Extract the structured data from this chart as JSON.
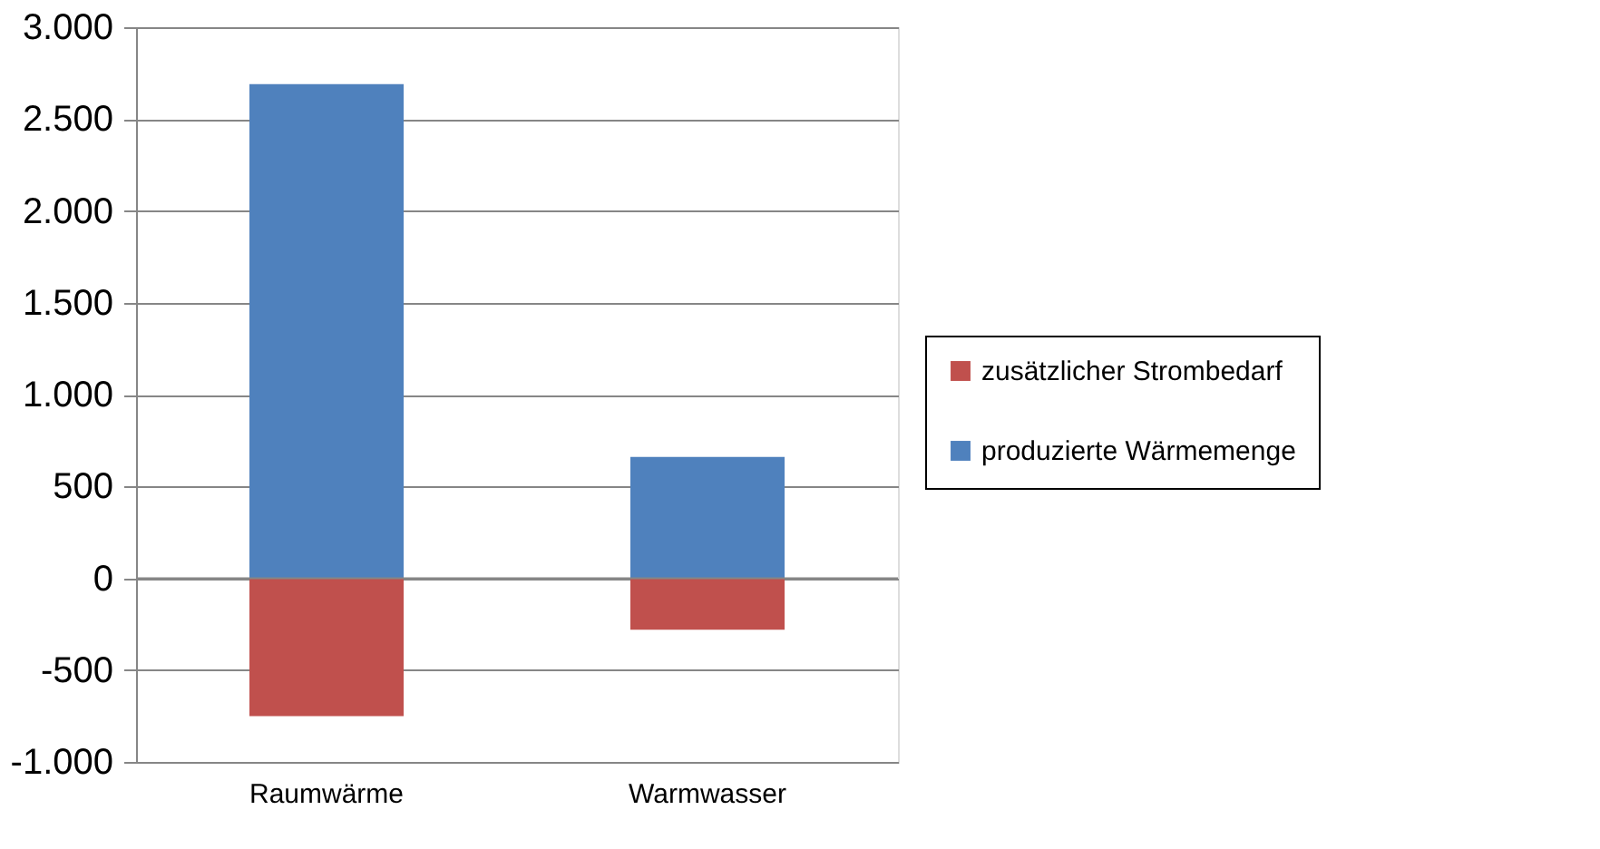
{
  "chart_data": {
    "type": "bar",
    "stacked": true,
    "categories": [
      "Raumwärme",
      "Warmwasser"
    ],
    "series": [
      {
        "name": "zusätzlicher Strombedarf",
        "color": "#c0504d",
        "values": [
          -750,
          -280
        ]
      },
      {
        "name": "produzierte Wärmemenge",
        "color": "#4f81bd",
        "values": [
          2690,
          660
        ]
      }
    ],
    "ylim": [
      -1000,
      3000
    ],
    "yticks": [
      {
        "value": -1000,
        "label": "-1.000"
      },
      {
        "value": -500,
        "label": "-500"
      },
      {
        "value": 0,
        "label": "0"
      },
      {
        "value": 500,
        "label": "500"
      },
      {
        "value": 1000,
        "label": "1.000"
      },
      {
        "value": 1500,
        "label": "1.500"
      },
      {
        "value": 2000,
        "label": "2.000"
      },
      {
        "value": 2500,
        "label": "2.500"
      },
      {
        "value": 3000,
        "label": "3.000"
      }
    ],
    "grid": "y",
    "legend": "right"
  }
}
